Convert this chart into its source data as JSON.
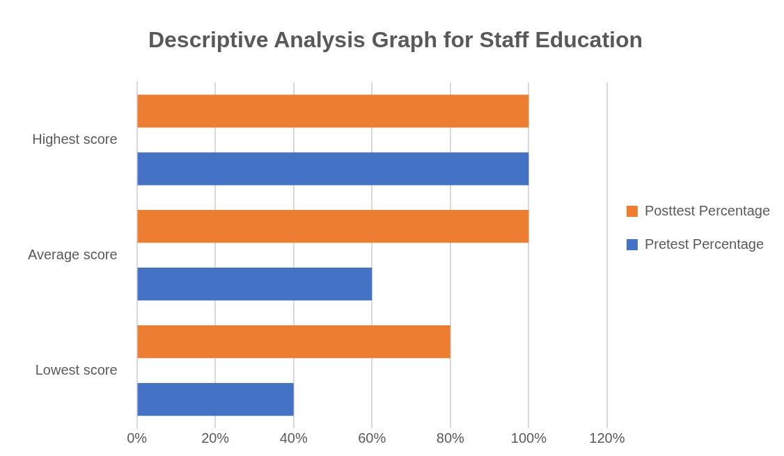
{
  "chart_data": {
    "type": "bar",
    "orientation": "horizontal",
    "title": "Descriptive Analysis Graph for Staff Education",
    "categories": [
      "Highest score",
      "Average score",
      "Lowest score"
    ],
    "series": [
      {
        "name": "Posttest Percentage",
        "color": "#ed7d31",
        "values": [
          100,
          100,
          80
        ]
      },
      {
        "name": "Pretest Percentage",
        "color": "#4472c4",
        "values": [
          100,
          60,
          40
        ]
      }
    ],
    "xlim": [
      0,
      120
    ],
    "xticks": [
      {
        "value": 0,
        "label": "0%"
      },
      {
        "value": 20,
        "label": "20%"
      },
      {
        "value": 40,
        "label": "40%"
      },
      {
        "value": 60,
        "label": "60%"
      },
      {
        "value": 80,
        "label": "80%"
      },
      {
        "value": 100,
        "label": "100%"
      },
      {
        "value": 120,
        "label": "120%"
      }
    ],
    "grid": "x",
    "legend": "right"
  }
}
